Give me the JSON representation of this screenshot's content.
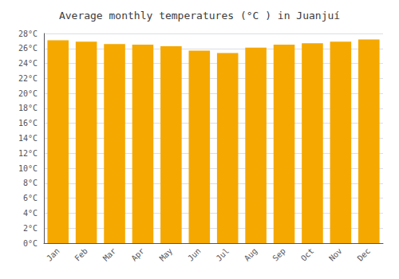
{
  "chart_data": {
    "type": "bar",
    "title": "Average monthly temperatures (°C ) in Juanjuí",
    "categories": [
      "Jan",
      "Feb",
      "Mar",
      "Apr",
      "May",
      "Jun",
      "Jul",
      "Aug",
      "Sep",
      "Oct",
      "Nov",
      "Dec"
    ],
    "values": [
      27.1,
      26.9,
      26.6,
      26.5,
      26.3,
      25.7,
      25.4,
      26.1,
      26.5,
      26.7,
      26.9,
      27.2
    ],
    "color": "#F5A800",
    "ylim": [
      0,
      28
    ],
    "yticks": [
      {
        "value": 0,
        "label": "0°C"
      },
      {
        "value": 2,
        "label": "2°C"
      },
      {
        "value": 4,
        "label": "4°C"
      },
      {
        "value": 6,
        "label": "6°C"
      },
      {
        "value": 8,
        "label": "8°C"
      },
      {
        "value": 10,
        "label": "10°C"
      },
      {
        "value": 12,
        "label": "12°C"
      },
      {
        "value": 14,
        "label": "14°C"
      },
      {
        "value": 16,
        "label": "16°C"
      },
      {
        "value": 18,
        "label": "18°C"
      },
      {
        "value": 20,
        "label": "20°C"
      },
      {
        "value": 22,
        "label": "22°C"
      },
      {
        "value": 24,
        "label": "24°C"
      },
      {
        "value": 26,
        "label": "26°C"
      },
      {
        "value": 28,
        "label": "28°C"
      }
    ],
    "grid": true
  }
}
